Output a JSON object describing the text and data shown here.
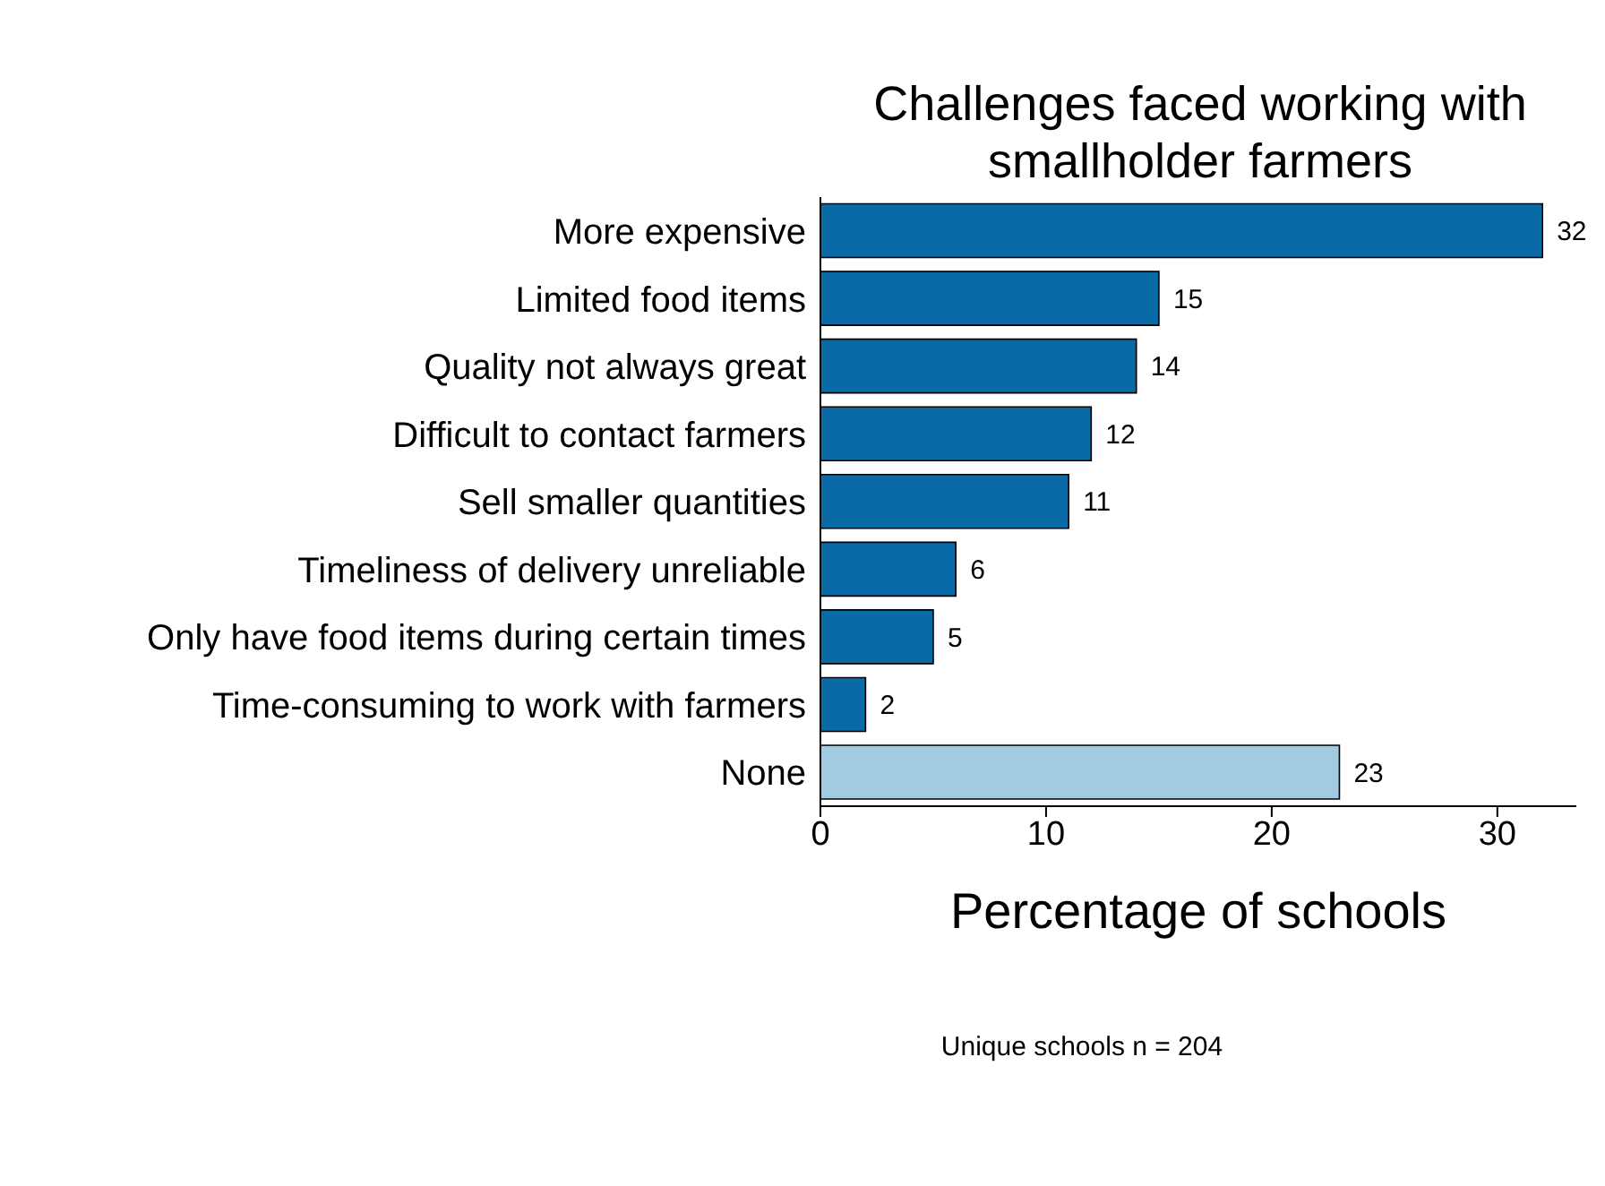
{
  "chart_data": {
    "type": "bar",
    "orientation": "horizontal",
    "title": "Challenges faced working with smallholder farmers",
    "xlabel": "Percentage of schools",
    "categories": [
      "More expensive",
      "Limited food items",
      "Quality not always great",
      "Difficult to contact farmers",
      "Sell smaller quantities",
      "Timeliness of delivery unreliable",
      "Only have food items during certain times",
      "Time-consuming to work with farmers",
      "None"
    ],
    "values": [
      32,
      15,
      14,
      12,
      11,
      6,
      5,
      2,
      23
    ],
    "colors": [
      "#0a6aa8",
      "#0a6aa8",
      "#0a6aa8",
      "#0a6aa8",
      "#0a6aa8",
      "#0a6aa8",
      "#0a6aa8",
      "#0a6aa8",
      "#a2cbe2"
    ],
    "xlim": [
      0,
      33.5
    ],
    "xticks": [
      0,
      10,
      20,
      30
    ],
    "data_labels": true,
    "annotations": [
      "Unique schools n = 204"
    ]
  }
}
